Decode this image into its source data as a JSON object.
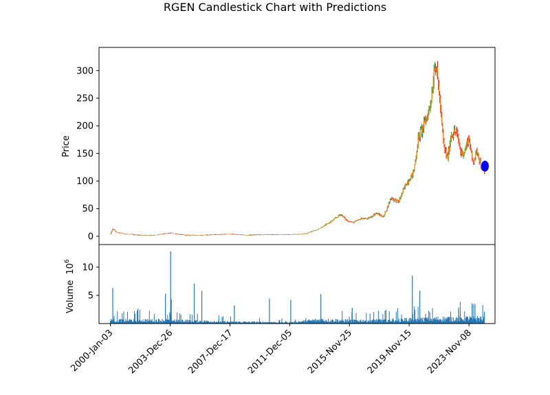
{
  "chart_data": {
    "type": "candlestick",
    "title": "RGEN Candlestick Chart with Predictions",
    "price_panel": {
      "ylabel": "Price",
      "ylim": [
        -15,
        342
      ],
      "yticks": [
        0,
        50,
        100,
        150,
        200,
        250,
        300
      ],
      "candle_colors": {
        "up": "#2ca02c",
        "down": "#d62728",
        "overlay": "#ff7f0e"
      },
      "price_path": [
        [
          "2000-01-03",
          4
        ],
        [
          "2000-03-01",
          14
        ],
        [
          "2000-06-01",
          7
        ],
        [
          "2001-01-01",
          4
        ],
        [
          "2002-01-01",
          2
        ],
        [
          "2003-01-01",
          2
        ],
        [
          "2004-01-01",
          6
        ],
        [
          "2004-06-01",
          4
        ],
        [
          "2005-01-01",
          2
        ],
        [
          "2006-01-01",
          2
        ],
        [
          "2007-01-01",
          3
        ],
        [
          "2008-01-01",
          4
        ],
        [
          "2008-07-01",
          3
        ],
        [
          "2009-01-01",
          2
        ],
        [
          "2010-01-01",
          3
        ],
        [
          "2011-01-01",
          3
        ],
        [
          "2012-01-01",
          3
        ],
        [
          "2013-01-01",
          5
        ],
        [
          "2013-10-01",
          12
        ],
        [
          "2014-03-01",
          18
        ],
        [
          "2014-10-01",
          28
        ],
        [
          "2015-05-01",
          40
        ],
        [
          "2015-10-01",
          28
        ],
        [
          "2016-03-01",
          25
        ],
        [
          "2016-09-01",
          32
        ],
        [
          "2017-03-01",
          32
        ],
        [
          "2017-09-01",
          42
        ],
        [
          "2018-03-01",
          35
        ],
        [
          "2018-09-01",
          70
        ],
        [
          "2019-03-01",
          62
        ],
        [
          "2019-09-01",
          95
        ],
        [
          "2020-03-01",
          115
        ],
        [
          "2020-07-01",
          180
        ],
        [
          "2020-11-01",
          200
        ],
        [
          "2021-03-01",
          225
        ],
        [
          "2021-06-01",
          265
        ],
        [
          "2021-08-01",
          320
        ],
        [
          "2021-11-01",
          270
        ],
        [
          "2022-03-01",
          165
        ],
        [
          "2022-06-01",
          140
        ],
        [
          "2022-09-01",
          185
        ],
        [
          "2023-01-01",
          190
        ],
        [
          "2023-05-01",
          150
        ],
        [
          "2023-08-01",
          155
        ],
        [
          "2023-11-01",
          180
        ],
        [
          "2024-02-01",
          135
        ],
        [
          "2024-06-01",
          155
        ],
        [
          "2024-09-01",
          125
        ],
        [
          "2024-11-15",
          115
        ]
      ],
      "prediction": {
        "date": "2024-12-01",
        "value": 127,
        "color": "#0000ff"
      }
    },
    "volume_panel": {
      "ylabel": "Volume",
      "multiplier_label": "10",
      "multiplier_exp": "6",
      "ylim": [
        0,
        14
      ],
      "yticks": [
        5,
        10
      ],
      "bar_color": "#1f77b4",
      "spikes": [
        [
          "2000-03-01",
          6.3
        ],
        [
          "2001-11-01",
          2.6
        ],
        [
          "2003-09-01",
          5.3
        ],
        [
          "2004-01-05",
          12.8
        ],
        [
          "2004-01-20",
          4.3
        ],
        [
          "2005-08-01",
          7.1
        ],
        [
          "2006-02-01",
          5.8
        ],
        [
          "2008-04-01",
          3.2
        ],
        [
          "2010-08-01",
          4.4
        ],
        [
          "2012-01-01",
          4.2
        ],
        [
          "2014-01-01",
          5.2
        ],
        [
          "2016-02-01",
          2.8
        ],
        [
          "2020-02-01",
          8.5
        ],
        [
          "2020-08-01",
          5.8
        ],
        [
          "2023-03-01",
          2.5
        ],
        [
          "2024-04-01",
          3.5
        ]
      ],
      "baseline_levels": [
        [
          "2000-01-03",
          0.8
        ],
        [
          "2004-01-01",
          0.8
        ],
        [
          "2008-01-01",
          0.4
        ],
        [
          "2012-01-01",
          0.3
        ],
        [
          "2014-01-01",
          0.9
        ],
        [
          "2016-01-01",
          0.7
        ],
        [
          "2019-01-01",
          0.9
        ],
        [
          "2022-06-01",
          1.2
        ],
        [
          "2024-11-15",
          1.3
        ]
      ]
    },
    "x_axis": {
      "range": [
        "1999-04-01",
        "2025-08-01"
      ],
      "ticks": [
        "2000-Jan-03",
        "2003-Dec-26",
        "2007-Dec-17",
        "2011-Dec-05",
        "2015-Nov-25",
        "2019-Nov-15",
        "2023-Nov-08"
      ],
      "tick_dates": [
        "2000-01-03",
        "2003-12-26",
        "2007-12-17",
        "2011-12-05",
        "2015-11-25",
        "2019-11-15",
        "2023-11-08"
      ]
    }
  }
}
